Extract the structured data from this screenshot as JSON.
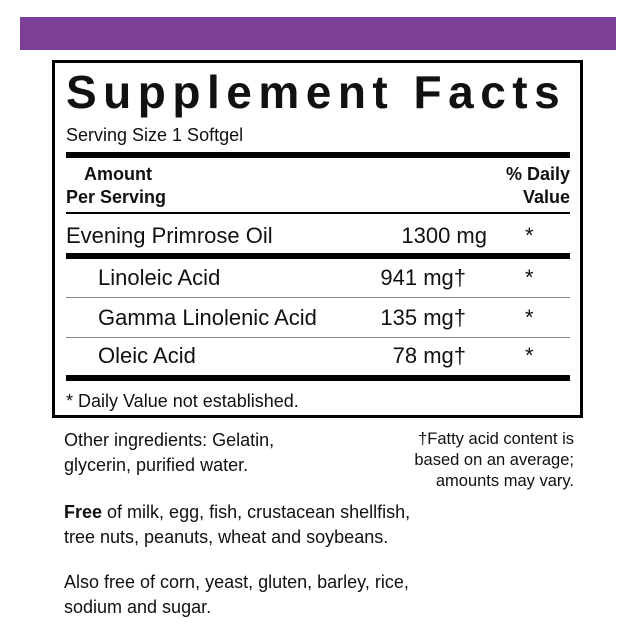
{
  "header": {
    "title": "Supplement Facts",
    "serving_size": "Serving Size 1 Softgel"
  },
  "table": {
    "column_amount": [
      "Amount",
      "Per Serving"
    ],
    "column_daily_value": [
      "% Daily",
      "Value"
    ],
    "rows": [
      {
        "name": "Evening Primrose Oil",
        "amount": "1300 mg",
        "daily_value": "*"
      },
      {
        "name": "Linoleic Acid",
        "amount": "941 mg†",
        "daily_value": "*"
      },
      {
        "name": "Gamma Linolenic Acid",
        "amount": "135 mg†",
        "daily_value": "*"
      },
      {
        "name": "Oleic Acid",
        "amount": "78 mg†",
        "daily_value": "*"
      }
    ],
    "footnote": "* Daily Value not established."
  },
  "notes": {
    "other_ingredients": [
      "Other ingredients: Gelatin,",
      "glycerin, purified water."
    ],
    "fatty_acid": [
      "†Fatty acid content is",
      "based on an average;",
      "amounts may vary."
    ],
    "free_bold": "Free",
    "free_text": [
      "of milk, egg, fish, crustacean shellfish,",
      "tree nuts, peanuts, wheat and soybeans."
    ],
    "also_free": [
      "Also free of corn, yeast, gluten, barley, rice,",
      "sodium and sugar."
    ]
  }
}
